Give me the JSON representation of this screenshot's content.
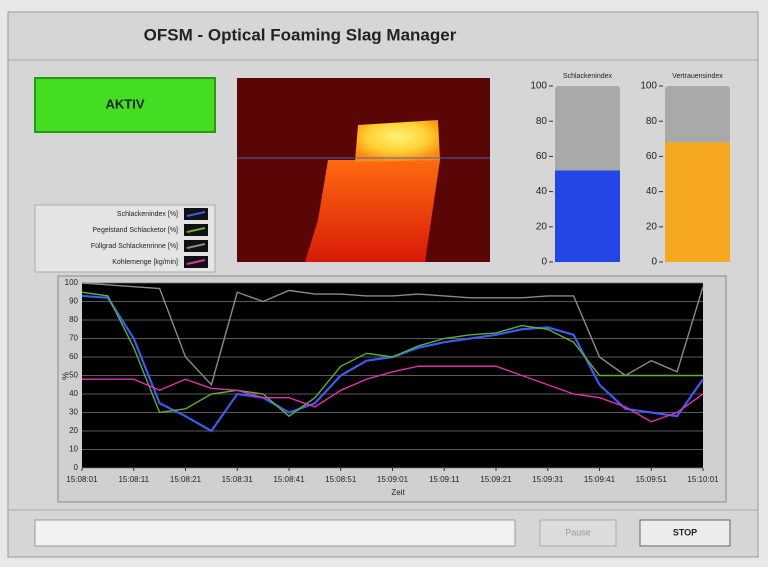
{
  "title": "OFSM - Optical Foaming Slag Manager",
  "status_button": "AKTIV",
  "gauges": [
    {
      "name": "Schlackenindex",
      "value": 52,
      "color": "#2446e6",
      "ylim": [
        0,
        100
      ],
      "yticks": [
        0,
        20,
        40,
        60,
        80,
        100
      ]
    },
    {
      "name": "Vertrauensindex",
      "value": 68,
      "color": "#f6a820",
      "ylim": [
        0,
        100
      ],
      "yticks": [
        0,
        20,
        40,
        60,
        80,
        100
      ]
    }
  ],
  "chart_data": {
    "type": "line",
    "xlabel": "Zeit",
    "ylabel": "%",
    "x": [
      0,
      5,
      10,
      15,
      20,
      25,
      30,
      35,
      40,
      45,
      50,
      55,
      60,
      65,
      70,
      75,
      80,
      85,
      90,
      95,
      100,
      105,
      110,
      115,
      120
    ],
    "xlim": [
      0,
      120
    ],
    "xticks": [
      {
        "value": 0,
        "label": "15:08:01"
      },
      {
        "value": 10,
        "label": "15:08:11"
      },
      {
        "value": 20,
        "label": "15:08:21"
      },
      {
        "value": 30,
        "label": "15:08:31"
      },
      {
        "value": 40,
        "label": "15:08:41"
      },
      {
        "value": 50,
        "label": "15:08:51"
      },
      {
        "value": 60,
        "label": "15:09:01"
      },
      {
        "value": 70,
        "label": "15:09:11"
      },
      {
        "value": 80,
        "label": "15:09:21"
      },
      {
        "value": 90,
        "label": "15:09:31"
      },
      {
        "value": 100,
        "label": "15:09:41"
      },
      {
        "value": 110,
        "label": "15:09:51"
      },
      {
        "value": 120,
        "label": "15:10:01"
      }
    ],
    "ylim": [
      0,
      100
    ],
    "yticks": [
      0,
      10,
      20,
      30,
      40,
      50,
      60,
      70,
      80,
      90,
      100
    ],
    "grid": true,
    "series": [
      {
        "name": "Schlackenindex [%]",
        "color": "#3a5cf0",
        "values": [
          93,
          92,
          70,
          35,
          28,
          20,
          40,
          38,
          30,
          35,
          50,
          58,
          60,
          65,
          68,
          70,
          72,
          75,
          76,
          72,
          45,
          32,
          30,
          28,
          48
        ]
      },
      {
        "name": "Pegelstand Schlacketor [%]",
        "color": "#5fae3a",
        "values": [
          95,
          93,
          65,
          30,
          32,
          40,
          42,
          40,
          28,
          38,
          55,
          62,
          60,
          66,
          70,
          72,
          73,
          77,
          75,
          68,
          50,
          50,
          50,
          50,
          50
        ]
      },
      {
        "name": "Füllgrad Schlackenrinne [%]",
        "color": "#8a8a8a",
        "values": [
          100,
          99,
          98,
          97,
          60,
          45,
          95,
          90,
          96,
          94,
          94,
          93,
          93,
          94,
          93,
          92,
          92,
          92,
          93,
          93,
          60,
          50,
          58,
          52,
          98
        ]
      },
      {
        "name": "Kohlemenge [kg/min]",
        "color": "#e030b0",
        "values": [
          48,
          48,
          48,
          42,
          48,
          43,
          42,
          38,
          38,
          33,
          42,
          48,
          52,
          55,
          55,
          55,
          55,
          50,
          45,
          40,
          38,
          33,
          25,
          30,
          40
        ]
      }
    ]
  },
  "buttons": [
    "Pause",
    "STOP"
  ]
}
